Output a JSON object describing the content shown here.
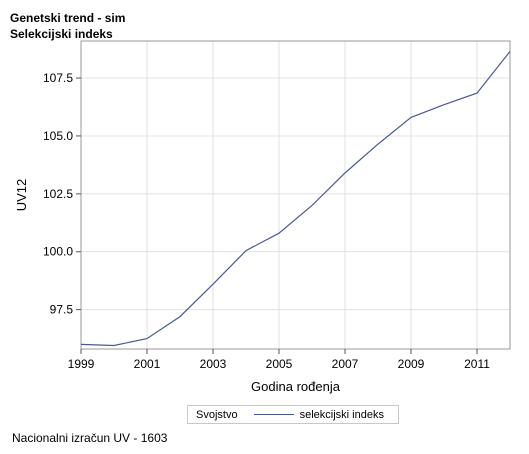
{
  "header": {
    "title": "Genetski trend - sim",
    "subtitle": "Selekcijski indeks"
  },
  "footnote": "Nacionalni izračun UV - 1603",
  "colors": {
    "series_line": "#4a5a8f",
    "grid": "#e1e1e1",
    "frame": "#9a9a9a"
  },
  "chart_data": {
    "type": "line",
    "title": "Genetski trend - sim",
    "subtitle": "Selekcijski indeks",
    "xlabel": "Godina rođenja",
    "ylabel": "UV12",
    "xlim": [
      1999,
      2012
    ],
    "ylim": [
      95.8,
      109.1
    ],
    "grid": true,
    "legend_position": "bottom",
    "legend_title": "Svojstvo",
    "x_ticks": [
      "1999",
      "2001",
      "2003",
      "2005",
      "2007",
      "2009",
      "2011"
    ],
    "y_ticks": [
      "97.5",
      "100.0",
      "102.5",
      "105.0",
      "107.5"
    ],
    "x": [
      1999,
      2000,
      2001,
      2002,
      2003,
      2004,
      2005,
      2006,
      2007,
      2008,
      2009,
      2010,
      2011,
      2012
    ],
    "series": [
      {
        "name": "selekcijski indeks",
        "values": [
          96.0,
          95.95,
          96.25,
          97.2,
          98.6,
          100.05,
          100.8,
          102.0,
          103.4,
          104.65,
          105.8,
          106.35,
          106.85,
          108.65
        ]
      }
    ]
  }
}
